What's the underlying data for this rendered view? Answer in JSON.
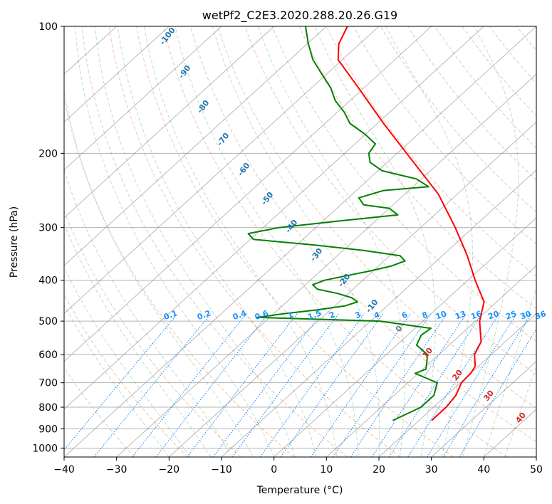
{
  "chart_data": {
    "type": "line",
    "title": "wetPf2_C2E3.2020.288.20.26.G19",
    "xlabel": "Temperature (°C)",
    "ylabel": "Pressure (hPa)",
    "xlim": [
      -40,
      50
    ],
    "ylim": [
      1050,
      100
    ],
    "x_ticks": [
      "−40",
      "−30",
      "−20",
      "−10",
      "0",
      "10",
      "20",
      "30",
      "40",
      "50"
    ],
    "y_ticks": [
      "100",
      "200",
      "300",
      "400",
      "500",
      "600",
      "700",
      "800",
      "900",
      "1000"
    ],
    "y_tick_values": [
      100,
      200,
      300,
      400,
      500,
      600,
      700,
      800,
      900,
      1000
    ],
    "y_scale": "log",
    "grid": true,
    "colors": {
      "temperature": "#ff0000",
      "dewpoint": "#008000",
      "isotherm": "#808080",
      "dry_adiabat": "#d2691e",
      "moist_adiabat": "#2e8b57",
      "mixing_ratio": "#1e90ff",
      "isotherm_label_warm": "#d62728",
      "isotherm_label_cold": "#1f77b4"
    },
    "series": [
      {
        "key": "temperature",
        "pressure": [
          860,
          800,
          750,
          700,
          665,
          640,
          600,
          560,
          500,
          450,
          400,
          350,
          300,
          250,
          200,
          170,
          140,
          120,
          110,
          100
        ],
        "temp": [
          22.4,
          22.4,
          21.8,
          20.2,
          20.0,
          19.4,
          16.8,
          15.4,
          10.8,
          7.6,
          1.4,
          -5.2,
          -13.4,
          -23.6,
          -38.2,
          -48.8,
          -61.0,
          -70.8,
          -74.0,
          -76.0
        ]
      },
      {
        "key": "dewpoint",
        "pressure": [
          860,
          800,
          750,
          700,
          665,
          650,
          620,
          600,
          570,
          540,
          520,
          500,
          490,
          480,
          470,
          460,
          450,
          440,
          430,
          420,
          410,
          400,
          390,
          380,
          370,
          360,
          350,
          340,
          330,
          320,
          310,
          300,
          290,
          280,
          270,
          265,
          255,
          245,
          240,
          230,
          220,
          210,
          200,
          190,
          180,
          170,
          160,
          150,
          140,
          130,
          120,
          110,
          100
        ],
        "dewpoint": [
          15.0,
          17.6,
          17.6,
          15.6,
          9.4,
          10.6,
          9.0,
          7.8,
          3.8,
          2.6,
          3.0,
          -8.2,
          -32.4,
          -28.0,
          -22.5,
          -18.0,
          -16.5,
          -18.5,
          -22.0,
          -26.8,
          -28.6,
          -27.3,
          -24.0,
          -20.5,
          -17.5,
          -16.0,
          -18.0,
          -26.0,
          -36.5,
          -49.4,
          -51.6,
          -47.0,
          -37.4,
          -27.0,
          -30.0,
          -35.6,
          -38.0,
          -34.8,
          -27.0,
          -31.0,
          -39.2,
          -43.3,
          -45.4,
          -46.1,
          -50.2,
          -55.2,
          -58.6,
          -62.8,
          -66.3,
          -70.8,
          -75.6,
          -79.8,
          -84.0
        ]
      }
    ],
    "isotherm_labels_cold": [
      "-100",
      "-90",
      "-80",
      "-70",
      "-60",
      "-50",
      "-40",
      "-30",
      "-20",
      "-10"
    ],
    "isotherm_labels_warm": [
      "0",
      "10",
      "20",
      "30",
      "40"
    ],
    "mixing_ratio_labels": [
      "0.1",
      "0.2",
      "0.4",
      "0.6",
      "1",
      "1.5",
      "2",
      "3",
      "4",
      "6",
      "8",
      "10",
      "13",
      "16",
      "20",
      "25",
      "30",
      "36"
    ]
  }
}
